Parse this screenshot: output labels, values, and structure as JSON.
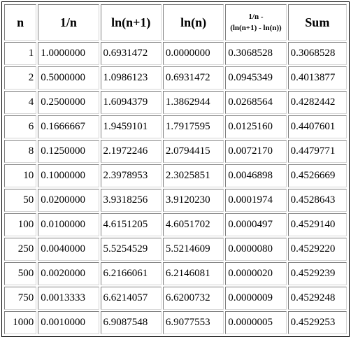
{
  "headers": {
    "n": "n",
    "inv": "1/n",
    "ln1": "ln(n+1)",
    "ln": "ln(n)",
    "diff_line1": "1/n -",
    "diff_line2": "(ln(n+1) - ln(n))",
    "sum": "Sum"
  },
  "rows": [
    {
      "n": "1",
      "inv": "1.0000000",
      "ln1": "0.6931472",
      "ln": "0.0000000",
      "diff": "0.3068528",
      "sum": "0.3068528"
    },
    {
      "n": "2",
      "inv": "0.5000000",
      "ln1": "1.0986123",
      "ln": "0.6931472",
      "diff": "0.0945349",
      "sum": "0.4013877"
    },
    {
      "n": "4",
      "inv": "0.2500000",
      "ln1": "1.6094379",
      "ln": "1.3862944",
      "diff": "0.0268564",
      "sum": "0.4282442"
    },
    {
      "n": "6",
      "inv": "0.1666667",
      "ln1": "1.9459101",
      "ln": "1.7917595",
      "diff": "0.0125160",
      "sum": "0.4407601"
    },
    {
      "n": "8",
      "inv": "0.1250000",
      "ln1": "2.1972246",
      "ln": "2.0794415",
      "diff": "0.0072170",
      "sum": "0.4479771"
    },
    {
      "n": "10",
      "inv": "0.1000000",
      "ln1": "2.3978953",
      "ln": "2.3025851",
      "diff": "0.0046898",
      "sum": "0.4526669"
    },
    {
      "n": "50",
      "inv": "0.0200000",
      "ln1": "3.9318256",
      "ln": "3.9120230",
      "diff": "0.0001974",
      "sum": "0.4528643"
    },
    {
      "n": "100",
      "inv": "0.0100000",
      "ln1": "4.6151205",
      "ln": "4.6051702",
      "diff": "0.0000497",
      "sum": "0.4529140"
    },
    {
      "n": "250",
      "inv": "0.0040000",
      "ln1": "5.5254529",
      "ln": "5.5214609",
      "diff": "0.0000080",
      "sum": "0.4529220"
    },
    {
      "n": "500",
      "inv": "0.0020000",
      "ln1": "6.2166061",
      "ln": "6.2146081",
      "diff": "0.0000020",
      "sum": "0.4529239"
    },
    {
      "n": "750",
      "inv": "0.0013333",
      "ln1": "6.6214057",
      "ln": "6.6200732",
      "diff": "0.0000009",
      "sum": "0.4529248"
    },
    {
      "n": "1000",
      "inv": "0.0010000",
      "ln1": "6.9087548",
      "ln": "6.9077553",
      "diff": "0.0000005",
      "sum": "0.4529253"
    }
  ]
}
